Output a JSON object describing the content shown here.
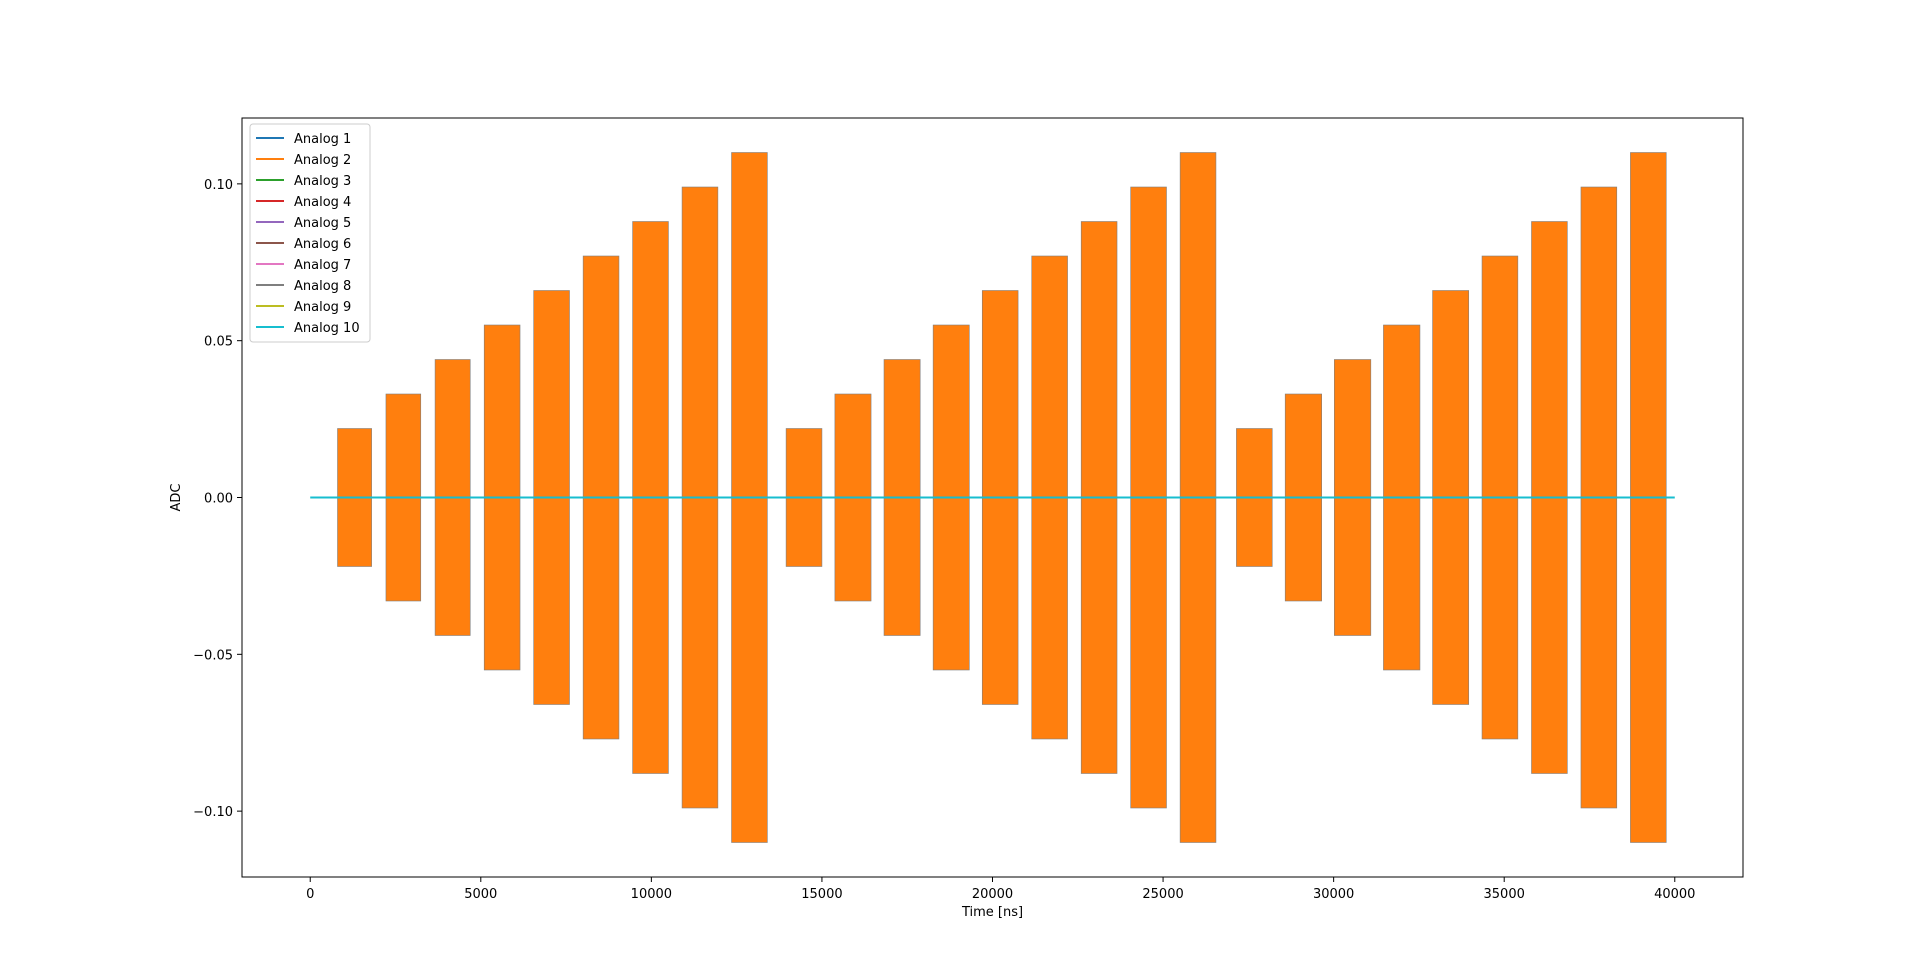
{
  "chart_data": {
    "type": "line",
    "title": "",
    "xlabel": "Time [ns]",
    "ylabel": "ADC",
    "xlim": [
      -2000,
      42000
    ],
    "ylim": [
      -0.121,
      0.121
    ],
    "grid": false,
    "legend_position": "top-left",
    "x_ticks": [
      0,
      5000,
      10000,
      15000,
      20000,
      25000,
      30000,
      35000,
      40000
    ],
    "x_tick_labels": [
      "0",
      "5000",
      "10000",
      "15000",
      "20000",
      "25000",
      "30000",
      "35000",
      "40000"
    ],
    "y_ticks": [
      -0.1,
      -0.05,
      0.0,
      0.05,
      0.1
    ],
    "y_tick_labels": [
      "−0.10",
      "−0.05",
      "0.00",
      "0.05",
      "0.10"
    ],
    "baseline": {
      "x_start": 0,
      "x_end": 40000,
      "value": 0.0
    },
    "series": [
      {
        "name": "Analog 1",
        "color": "#1f77b4"
      },
      {
        "name": "Analog 2",
        "color": "#ff7f0e"
      },
      {
        "name": "Analog 3",
        "color": "#2ca02c"
      },
      {
        "name": "Analog 4",
        "color": "#d62728"
      },
      {
        "name": "Analog 5",
        "color": "#9467bd"
      },
      {
        "name": "Analog 6",
        "color": "#8c564b"
      },
      {
        "name": "Analog 7",
        "color": "#e377c2"
      },
      {
        "name": "Analog 8",
        "color": "#7f7f7f"
      },
      {
        "name": "Analog 9",
        "color": "#bcbd22"
      },
      {
        "name": "Analog 10",
        "color": "#17becf"
      }
    ],
    "pulses": [
      {
        "start": 800,
        "end": 1800,
        "amplitude": 0.022
      },
      {
        "start": 2220,
        "end": 3240,
        "amplitude": 0.033
      },
      {
        "start": 3660,
        "end": 4690,
        "amplitude": 0.044
      },
      {
        "start": 5100,
        "end": 6150,
        "amplitude": 0.055
      },
      {
        "start": 6550,
        "end": 7600,
        "amplitude": 0.066
      },
      {
        "start": 8000,
        "end": 9050,
        "amplitude": 0.077
      },
      {
        "start": 9450,
        "end": 10500,
        "amplitude": 0.088
      },
      {
        "start": 10900,
        "end": 11950,
        "amplitude": 0.099
      },
      {
        "start": 12350,
        "end": 13400,
        "amplitude": 0.11
      },
      {
        "start": 13950,
        "end": 15000,
        "amplitude": 0.022
      },
      {
        "start": 15380,
        "end": 16440,
        "amplitude": 0.033
      },
      {
        "start": 16820,
        "end": 17880,
        "amplitude": 0.044
      },
      {
        "start": 18260,
        "end": 19320,
        "amplitude": 0.055
      },
      {
        "start": 19700,
        "end": 20750,
        "amplitude": 0.066
      },
      {
        "start": 21150,
        "end": 22200,
        "amplitude": 0.077
      },
      {
        "start": 22600,
        "end": 23650,
        "amplitude": 0.088
      },
      {
        "start": 24050,
        "end": 25100,
        "amplitude": 0.099
      },
      {
        "start": 25500,
        "end": 26550,
        "amplitude": 0.11
      },
      {
        "start": 27150,
        "end": 28200,
        "amplitude": 0.022
      },
      {
        "start": 28580,
        "end": 29650,
        "amplitude": 0.033
      },
      {
        "start": 30020,
        "end": 31090,
        "amplitude": 0.044
      },
      {
        "start": 31460,
        "end": 32530,
        "amplitude": 0.055
      },
      {
        "start": 32900,
        "end": 33960,
        "amplitude": 0.066
      },
      {
        "start": 34350,
        "end": 35400,
        "amplitude": 0.077
      },
      {
        "start": 35800,
        "end": 36850,
        "amplitude": 0.088
      },
      {
        "start": 37250,
        "end": 38300,
        "amplitude": 0.099
      },
      {
        "start": 38700,
        "end": 39750,
        "amplitude": 0.11
      }
    ]
  }
}
